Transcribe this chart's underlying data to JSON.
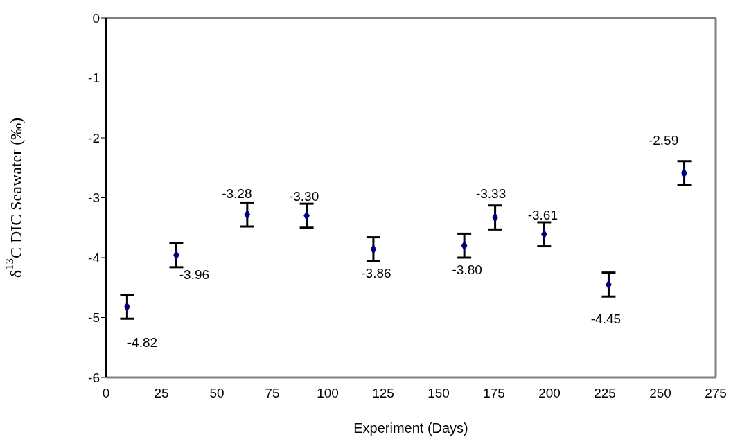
{
  "chart_data": {
    "type": "scatter",
    "xlabel": "Experiment (Days)",
    "ylabel": "δ$^{13}$C DIC Seawater (‰)",
    "x": [
      9.5,
      31.7,
      63.7,
      90.5,
      120.6,
      161.6,
      175.5,
      197.6,
      226.7,
      260.8
    ],
    "values": [
      -4.82,
      -3.96,
      -3.28,
      -3.3,
      -3.86,
      -3.8,
      -3.33,
      -3.61,
      -4.45,
      -2.59
    ],
    "errors": [
      0.2,
      0.2,
      0.2,
      0.2,
      0.2,
      0.2,
      0.2,
      0.2,
      0.2,
      0.2
    ],
    "value_labels": [
      "-4.82",
      "-3.96",
      "-3.28",
      "-3.30",
      "-3.86",
      "-3.80",
      "-3.33",
      "-3.61",
      "-4.45",
      "-2.59"
    ],
    "color": "#000080",
    "marker": "diamond",
    "xlim": [
      0,
      275
    ],
    "xticks": [
      0,
      25,
      50,
      75,
      100,
      125,
      150,
      175,
      200,
      225,
      250,
      275
    ],
    "ylim": [
      -6,
      0
    ],
    "yticks": [
      -6,
      -5,
      -4,
      -3,
      -2,
      -1,
      0
    ],
    "ref_lines": [
      {
        "axis": "y",
        "value": -3.74,
        "color": "#808080"
      }
    ]
  }
}
